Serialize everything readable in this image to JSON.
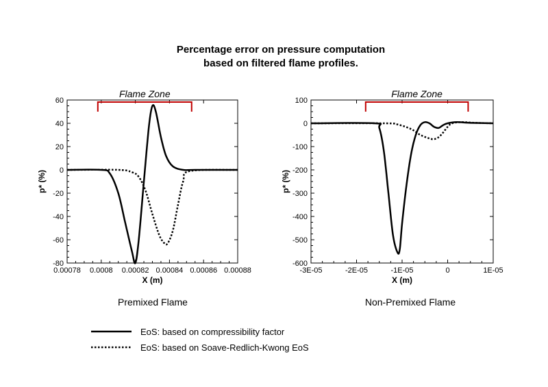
{
  "title_line1": "Percentage error on pressure computation",
  "title_line2": "based on filtered flame profiles.",
  "legend": [
    {
      "label": "EoS: based on compressibility factor",
      "style": "solid"
    },
    {
      "label": "EoS: based on Soave-Redlich-Kwong EoS",
      "style": "dotted"
    }
  ],
  "colors": {
    "zone_bracket": "#c00000",
    "lines": "#000000"
  },
  "chart_data": [
    {
      "type": "line",
      "caption": "Premixed Flame",
      "xlabel": "X (m)",
      "ylabel": "p* (%)",
      "xlim": [
        0.00078,
        0.00088
      ],
      "ylim": [
        -80,
        60
      ],
      "xticks": [
        0.00078,
        0.0008,
        0.00082,
        0.00084,
        0.00086,
        0.00088
      ],
      "xtick_labels": [
        "0.00078",
        "0.0008",
        "0.00082",
        "0.00084",
        "0.00086",
        "0.00088"
      ],
      "yticks": [
        -80,
        -60,
        -40,
        -20,
        0,
        20,
        40,
        60
      ],
      "ytick_labels": [
        "-80",
        "-60",
        "-40",
        "-20",
        "0",
        "20",
        "40",
        "60"
      ],
      "annotation": {
        "text": "Flame Zone",
        "x_from": 0.000798,
        "x_to": 0.000853
      },
      "series": [
        {
          "style": "solid",
          "x": [
            0.00078,
            0.0008,
            0.000805,
            0.00081,
            0.000814,
            0.000818,
            0.00082,
            0.000822,
            0.000825,
            0.000828,
            0.00083,
            0.000832,
            0.000835,
            0.000838,
            0.000842,
            0.000848,
            0.000855,
            0.00088
          ],
          "y": [
            0,
            0,
            -3,
            -20,
            -45,
            -70,
            -80,
            -60,
            -10,
            38,
            55,
            50,
            28,
            12,
            3,
            0,
            0,
            0
          ]
        },
        {
          "style": "dotted",
          "x": [
            0.00078,
            0.00081,
            0.000818,
            0.000822,
            0.000826,
            0.00083,
            0.000834,
            0.000837,
            0.000839,
            0.000842,
            0.000845,
            0.000848,
            0.000852,
            0.00088
          ],
          "y": [
            0,
            0,
            -2,
            -6,
            -18,
            -38,
            -56,
            -63,
            -63,
            -52,
            -30,
            -10,
            -1,
            0
          ]
        }
      ]
    },
    {
      "type": "line",
      "caption": "Non-Premixed Flame",
      "xlabel": "X (m)",
      "ylabel": "p* (%)",
      "xlim": [
        -3e-05,
        1e-05
      ],
      "ylim": [
        -600,
        100
      ],
      "xticks": [
        -3e-05,
        -2e-05,
        -1e-05,
        0,
        1e-05
      ],
      "xtick_labels": [
        "-3E-05",
        "-2E-05",
        "-1E-05",
        "0",
        "1E-05"
      ],
      "yticks": [
        -600,
        -500,
        -400,
        -300,
        -200,
        -100,
        0,
        100
      ],
      "ytick_labels": [
        "-600",
        "-500",
        "-400",
        "-300",
        "-200",
        "-100",
        "0",
        "100"
      ],
      "annotation": {
        "text": "Flame Zone",
        "x_from": -1.8e-05,
        "x_to": 4.5e-06
      },
      "series": [
        {
          "style": "solid",
          "x": [
            -3e-05,
            -1.6e-05,
            -1.5e-05,
            -1.4e-05,
            -1.3e-05,
            -1.2e-05,
            -1.1e-05,
            -1.05e-05,
            -1e-05,
            -9e-06,
            -8e-06,
            -7e-06,
            -6e-06,
            -5e-06,
            -4e-06,
            -3e-06,
            -2e-06,
            -1e-06,
            0,
            2e-06,
            5e-06,
            1e-05
          ],
          "y": [
            0,
            0,
            -20,
            -120,
            -300,
            -480,
            -555,
            -540,
            -430,
            -260,
            -130,
            -50,
            -8,
            5,
            0,
            -15,
            -20,
            -8,
            0,
            5,
            2,
            0
          ]
        },
        {
          "style": "dotted",
          "x": [
            -3e-05,
            -1.4e-05,
            -1.1e-05,
            -8e-06,
            -6e-06,
            -4e-06,
            -3e-06,
            -2e-06,
            -1e-06,
            0,
            1e-06,
            3e-06,
            6e-06,
            1e-05
          ],
          "y": [
            0,
            0,
            -5,
            -25,
            -50,
            -65,
            -68,
            -60,
            -40,
            -15,
            0,
            5,
            2,
            0
          ]
        }
      ]
    }
  ]
}
